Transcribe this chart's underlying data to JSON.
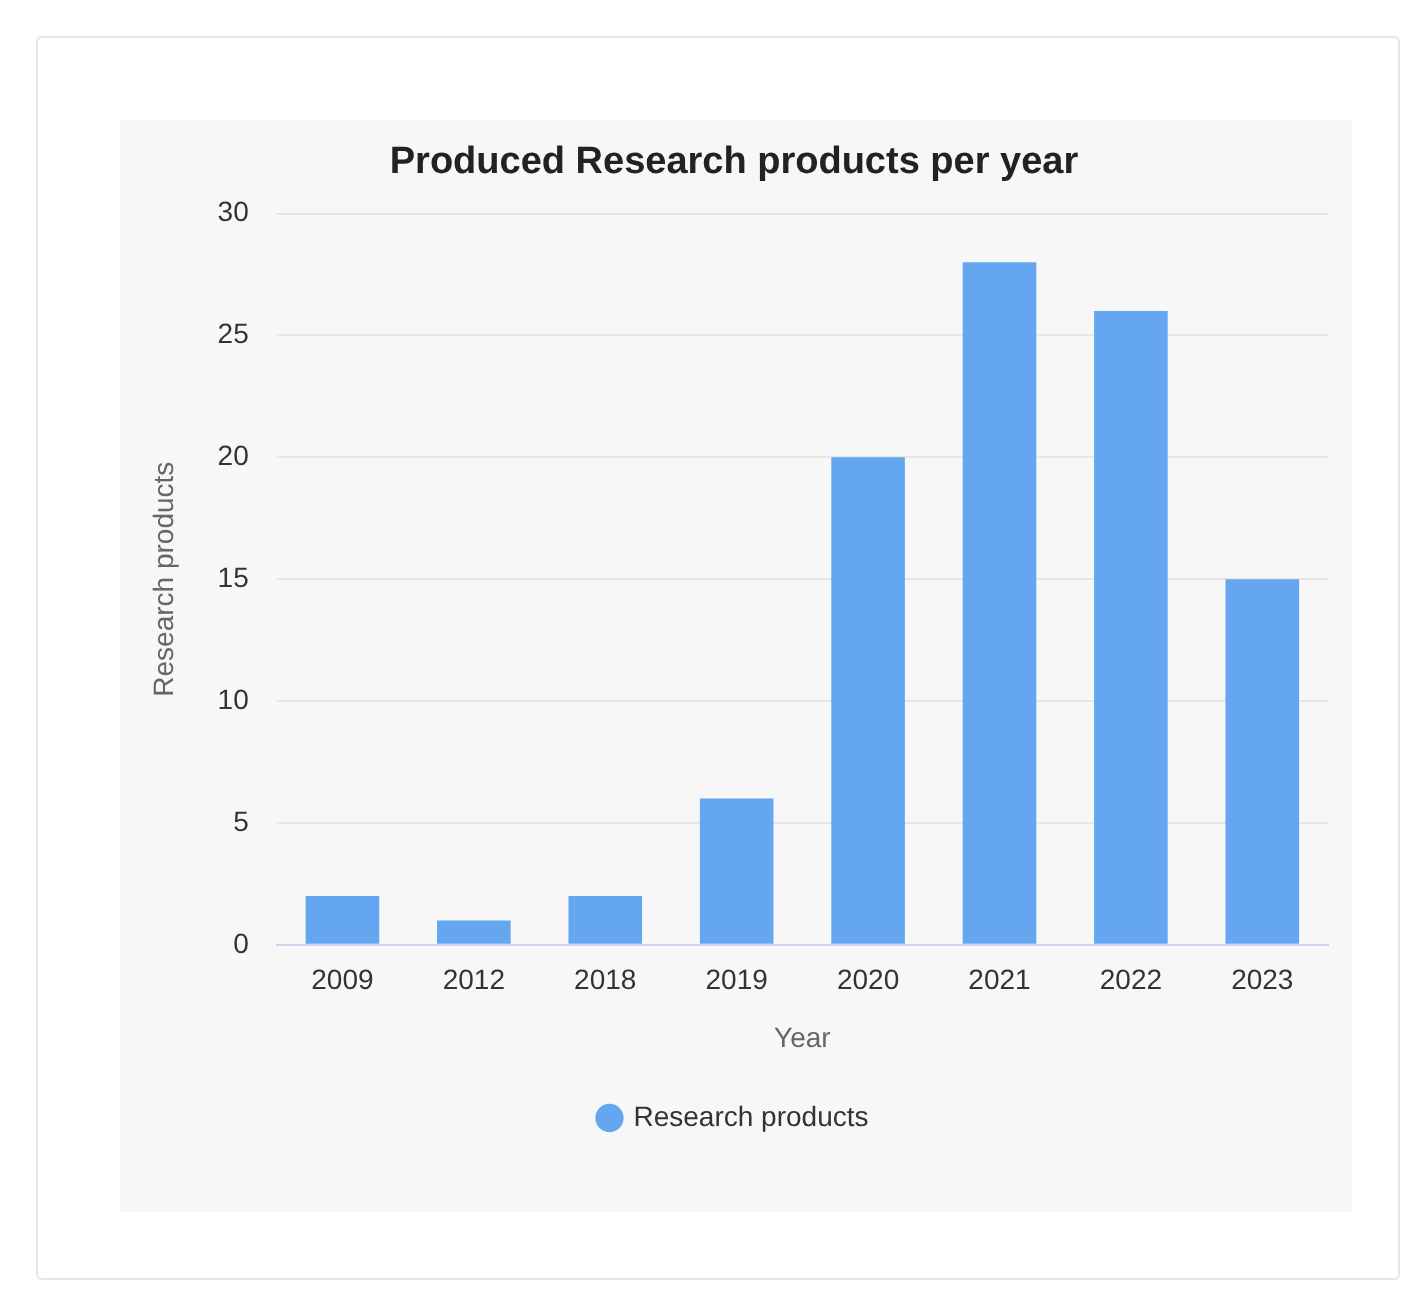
{
  "chart_data": {
    "type": "bar",
    "title": "Produced Research products per year",
    "xlabel": "Year",
    "ylabel": "Research products",
    "categories": [
      "2009",
      "2012",
      "2018",
      "2019",
      "2020",
      "2021",
      "2022",
      "2023"
    ],
    "series": [
      {
        "name": "Research products",
        "color": "#64a6f0",
        "values": [
          2,
          1,
          2,
          6,
          20,
          28,
          26,
          15
        ]
      }
    ],
    "ylim": [
      0,
      30
    ],
    "yticks": [
      0,
      5,
      10,
      15,
      20,
      25,
      30
    ],
    "grid": "y",
    "legend": "bottom"
  }
}
